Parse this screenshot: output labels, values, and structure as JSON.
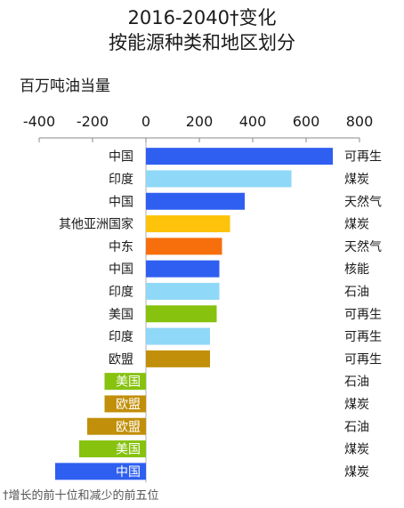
{
  "chart_data": {
    "type": "bar",
    "orientation": "horizontal",
    "title_line1": "2016-2040†变化",
    "title_line2": "按能源种类和地区划分",
    "ylabel": "百万吨油当量",
    "footnote": "†增长的前十位和减少的前五位",
    "xlim": [
      -400,
      800
    ],
    "x_ticks": [
      "-400",
      "-200",
      "0",
      "200",
      "400",
      "600",
      "800"
    ],
    "x_tick_values": [
      -400,
      -200,
      0,
      200,
      400,
      600,
      800
    ],
    "grid": false,
    "fuel_colors": {
      "可再生": "#2f5ff0",
      "煤炭": "#8fd8f7",
      "天然气": "#f25c05",
      "核能": "#f5a402",
      "石油": "#8ac80a",
      "其他": "#c28f0a"
    },
    "bars": [
      {
        "region": "中国",
        "fuel": "可再生",
        "value": 700,
        "color": "#2f5ff0"
      },
      {
        "region": "印度",
        "fuel": "煤炭",
        "value": 545,
        "color": "#8fd8f7"
      },
      {
        "region": "中国",
        "fuel": "天然气",
        "value": 370,
        "color": "#2f5ff0"
      },
      {
        "region": "其他亚洲国家",
        "fuel": "煤炭",
        "value": 315,
        "color": "#fcc30a"
      },
      {
        "region": "中东",
        "fuel": "天然气",
        "value": 285,
        "color": "#f76f0c"
      },
      {
        "region": "中国",
        "fuel": "核能",
        "value": 275,
        "color": "#2f5ff0"
      },
      {
        "region": "印度",
        "fuel": "石油",
        "value": 275,
        "color": "#8fd8f7"
      },
      {
        "region": "美国",
        "fuel": "可再生",
        "value": 265,
        "color": "#86c20e"
      },
      {
        "region": "印度",
        "fuel": "可再生",
        "value": 240,
        "color": "#8fd8f7"
      },
      {
        "region": "欧盟",
        "fuel": "可再生",
        "value": 240,
        "color": "#c28f0a"
      },
      {
        "region": "美国",
        "fuel": "石油",
        "value": -155,
        "color": "#86c20e"
      },
      {
        "region": "欧盟",
        "fuel": "煤炭",
        "value": -155,
        "color": "#c28f0a"
      },
      {
        "region": "欧盟",
        "fuel": "石油",
        "value": -220,
        "color": "#c28f0a"
      },
      {
        "region": "美国",
        "fuel": "煤炭",
        "value": -250,
        "color": "#86c20e"
      },
      {
        "region": "中国",
        "fuel": "煤炭",
        "value": -340,
        "color": "#2f5ff0"
      }
    ]
  }
}
